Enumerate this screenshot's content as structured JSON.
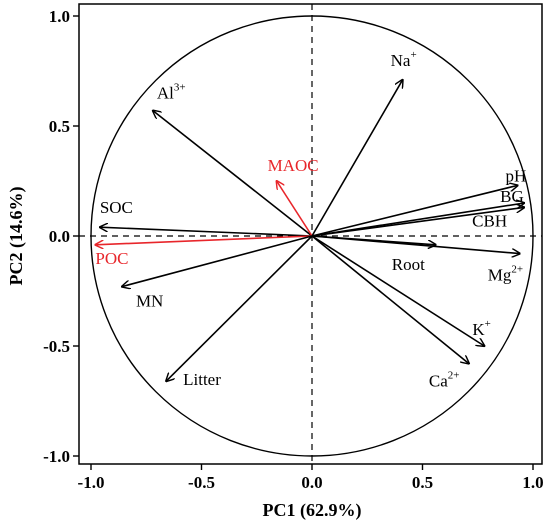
{
  "chart_data": {
    "type": "scatter",
    "subtype": "pca-biplot-loadings",
    "xlabel": "PC1 (62.9%)",
    "ylabel": "PC2 (14.6%)",
    "xlim": [
      -1.05,
      1.05
    ],
    "ylim": [
      -1.05,
      1.05
    ],
    "x_ticks": [
      "-1.0",
      "-0.5",
      "0.0",
      "0.5",
      "1.0"
    ],
    "y_ticks": [
      "-1.0",
      "-0.5",
      "0.0",
      "0.5",
      "1.0"
    ],
    "unit_circle": true,
    "reference_lines": [
      "x=0 dashed",
      "y=0 dashed"
    ],
    "colors": {
      "default": "#000000",
      "highlight": "#e8262b"
    },
    "vectors": [
      {
        "label": "Na",
        "sup": "+",
        "x": 0.41,
        "y": 0.71,
        "color": "default"
      },
      {
        "label": "Al",
        "sup": "3+",
        "x": -0.72,
        "y": 0.57,
        "color": "default"
      },
      {
        "label": "MAOC",
        "sup": "",
        "x": -0.16,
        "y": 0.25,
        "color": "highlight"
      },
      {
        "label": "SOC",
        "sup": "",
        "x": -0.96,
        "y": 0.04,
        "color": "default"
      },
      {
        "label": "POC",
        "sup": "",
        "x": -0.98,
        "y": -0.04,
        "color": "highlight"
      },
      {
        "label": "MN",
        "sup": "",
        "x": -0.86,
        "y": -0.23,
        "color": "default"
      },
      {
        "label": "Litter",
        "sup": "",
        "x": -0.66,
        "y": -0.66,
        "color": "default"
      },
      {
        "label": "pH",
        "sup": "",
        "x": 0.93,
        "y": 0.23,
        "color": "default"
      },
      {
        "label": "BG",
        "sup": "",
        "x": 0.96,
        "y": 0.15,
        "color": "default"
      },
      {
        "label": "CBH",
        "sup": "",
        "x": 0.96,
        "y": 0.13,
        "color": "default"
      },
      {
        "label": "Root",
        "sup": "",
        "x": 0.56,
        "y": -0.04,
        "color": "default"
      },
      {
        "label": "Mg",
        "sup": "2+",
        "x": 0.94,
        "y": -0.08,
        "color": "default"
      },
      {
        "label": "K",
        "sup": "+",
        "x": 0.78,
        "y": -0.5,
        "color": "default"
      },
      {
        "label": "Ca",
        "sup": "2+",
        "x": 0.71,
        "y": -0.58,
        "color": "default"
      }
    ]
  }
}
